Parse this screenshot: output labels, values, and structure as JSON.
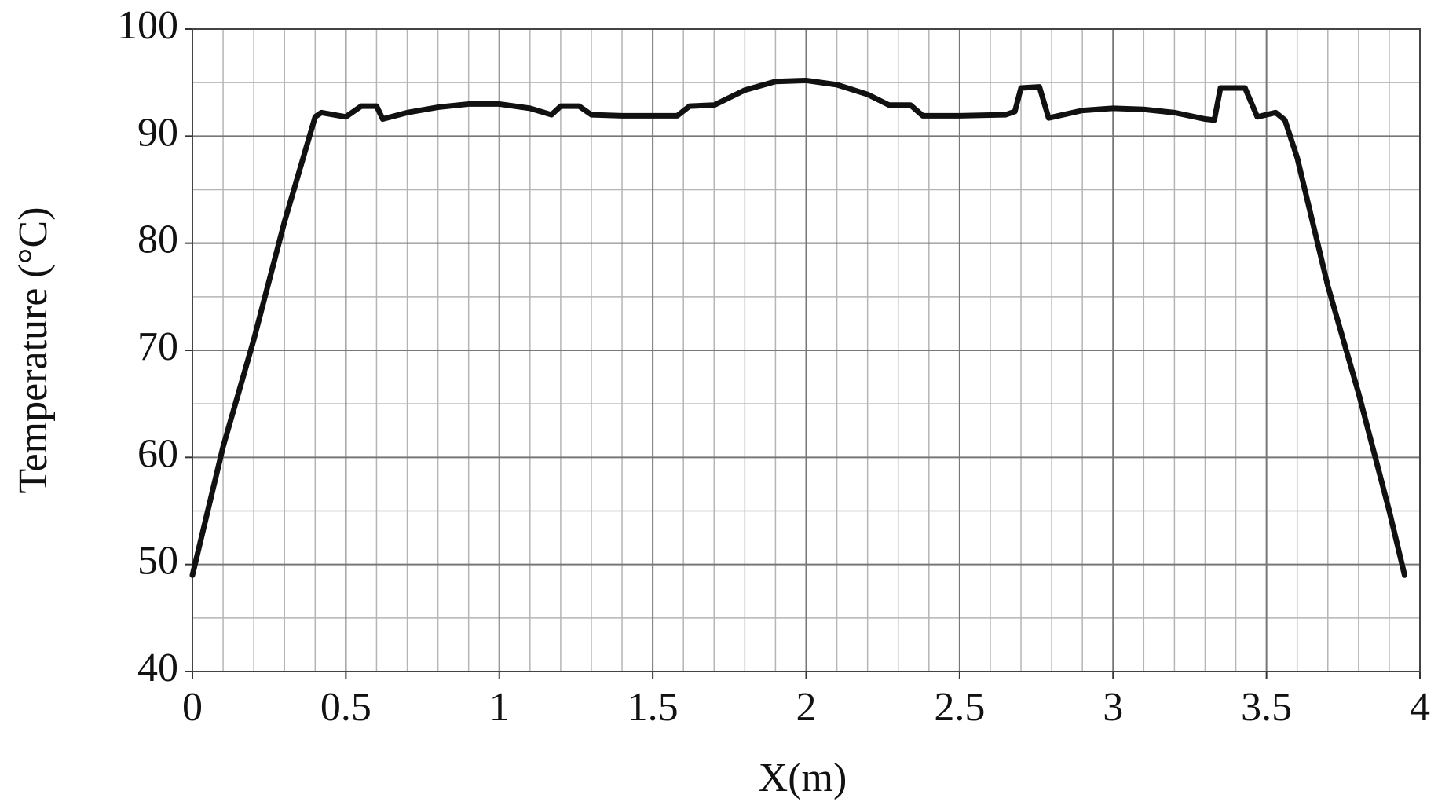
{
  "chart_data": {
    "type": "line",
    "x_label": "X(m)",
    "y_label": "Temperature (°C)",
    "x": [
      0,
      0.1,
      0.2,
      0.3,
      0.4,
      0.42,
      0.5,
      0.55,
      0.6,
      0.62,
      0.7,
      0.8,
      0.9,
      1.0,
      1.1,
      1.17,
      1.2,
      1.26,
      1.3,
      1.4,
      1.5,
      1.58,
      1.62,
      1.7,
      1.8,
      1.9,
      2.0,
      2.1,
      2.2,
      2.27,
      2.34,
      2.38,
      2.5,
      2.65,
      2.68,
      2.7,
      2.76,
      2.79,
      2.9,
      3.0,
      3.1,
      3.2,
      3.3,
      3.33,
      3.35,
      3.43,
      3.47,
      3.53,
      3.56,
      3.6,
      3.7,
      3.8,
      3.9,
      3.95
    ],
    "series": [
      {
        "color": "#111111",
        "values": [
          49,
          61,
          71,
          82,
          91.8,
          92.2,
          91.8,
          92.8,
          92.8,
          91.6,
          92.2,
          92.7,
          93,
          93,
          92.6,
          92,
          92.8,
          92.8,
          92,
          91.9,
          91.9,
          91.9,
          92.8,
          92.9,
          94.3,
          95.1,
          95.2,
          94.8,
          93.9,
          92.9,
          92.9,
          91.9,
          91.9,
          92,
          92.3,
          94.5,
          94.6,
          91.7,
          92.4,
          92.6,
          92.5,
          92.2,
          91.6,
          91.5,
          94.5,
          94.5,
          91.8,
          92.2,
          91.5,
          88,
          76,
          66,
          55,
          49
        ]
      }
    ],
    "xlim": [
      0,
      4
    ],
    "xticks": [
      0,
      0.5,
      1,
      1.5,
      2,
      2.5,
      3,
      3.5,
      4
    ],
    "ylim": [
      40,
      100
    ],
    "yticks": [
      40,
      50,
      60,
      70,
      80,
      90,
      100
    ],
    "grid": true,
    "minor_grid_divisions": [
      5,
      2
    ]
  }
}
